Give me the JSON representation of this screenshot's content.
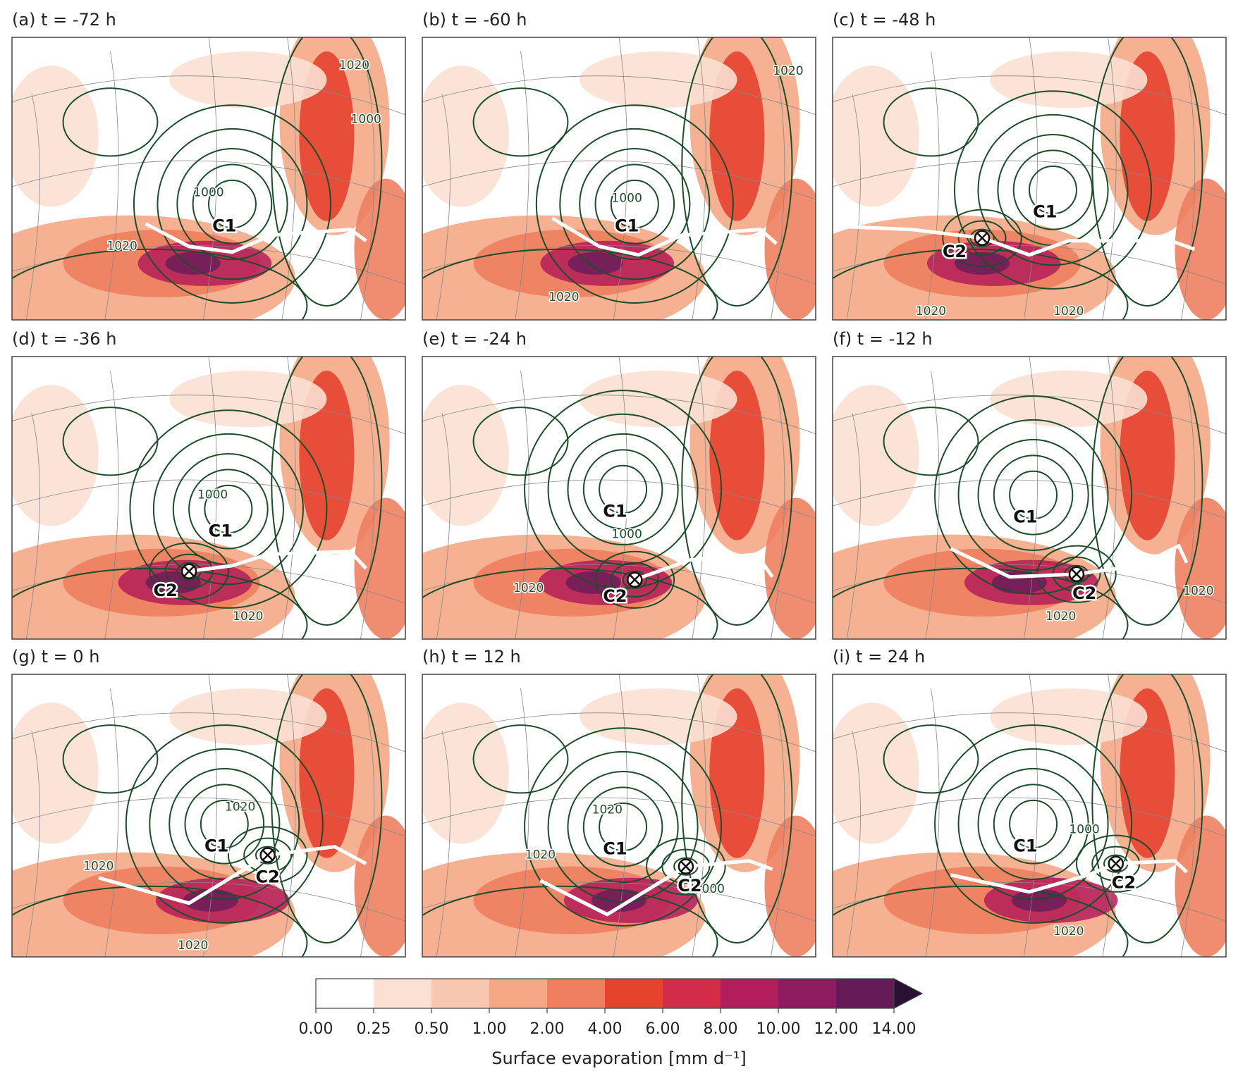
{
  "panels": [
    {
      "title": "(a) t = -72 h",
      "cyclones": [
        "C1"
      ],
      "contour_labels": [
        1000,
        1020,
        1020,
        1000
      ]
    },
    {
      "title": "(b) t = -60 h",
      "cyclones": [
        "C1"
      ],
      "contour_labels": [
        1000,
        1020,
        1020
      ]
    },
    {
      "title": "(c) t = -48 h",
      "cyclones": [
        "C1",
        "C2"
      ],
      "contour_labels": [
        1020,
        1020
      ]
    },
    {
      "title": "(d) t = -36 h",
      "cyclones": [
        "C1",
        "C2"
      ],
      "contour_labels": [
        1000,
        1020
      ]
    },
    {
      "title": "(e) t = -24 h",
      "cyclones": [
        "C1",
        "C2"
      ],
      "contour_labels": [
        1000,
        1020
      ]
    },
    {
      "title": "(f) t = -12 h",
      "cyclones": [
        "C1",
        "C2"
      ],
      "contour_labels": [
        1020,
        1020
      ]
    },
    {
      "title": "(g) t = 0 h",
      "cyclones": [
        "C1",
        "C2"
      ],
      "contour_labels": [
        1020,
        1020,
        1020
      ]
    },
    {
      "title": "(h) t = 12 h",
      "cyclones": [
        "C1",
        "C2"
      ],
      "contour_labels": [
        1020,
        1020,
        1000
      ]
    },
    {
      "title": "(i) t = 24 h",
      "cyclones": [
        "C1",
        "C2"
      ],
      "contour_labels": [
        1000,
        1020
      ]
    }
  ],
  "colorbar": {
    "label": "Surface evaporation [mm d⁻¹]",
    "ticks": [
      {
        "value": 0,
        "label": "0.00"
      },
      {
        "value": 0.25,
        "label": "0.25"
      },
      {
        "value": 0.5,
        "label": "0.50"
      },
      {
        "value": 1,
        "label": "1.00"
      },
      {
        "value": 2,
        "label": "2.00"
      },
      {
        "value": 4,
        "label": "4.00"
      },
      {
        "value": 6,
        "label": "6.00"
      },
      {
        "value": 8,
        "label": "8.00"
      },
      {
        "value": 10,
        "label": "10.00"
      },
      {
        "value": 12,
        "label": "12.00"
      },
      {
        "value": 14,
        "label": "14.00"
      }
    ],
    "colors": [
      "#ffffff",
      "#fbe0d3",
      "#f8c7b0",
      "#f4a885",
      "#ee8061",
      "#e6432f",
      "#d22c48",
      "#b41d5b",
      "#8c1b5f",
      "#651b58"
    ],
    "extend": "max",
    "extend_color": "#2a1133"
  }
}
